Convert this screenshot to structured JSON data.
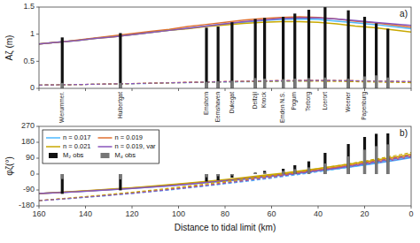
{
  "chart_data": [
    {
      "type": "line",
      "title": "a)",
      "ylabel": "Aζ (m)",
      "xlim": [
        160,
        0
      ],
      "ylim": [
        0,
        1.5
      ],
      "xticks": [
        0,
        20,
        40,
        60,
        80,
        100,
        120,
        140,
        160
      ],
      "yticks": [
        0,
        0.5,
        1,
        1.5
      ],
      "tick_labels": "y",
      "grid": false,
      "x": [
        160,
        152,
        144,
        136,
        128,
        120,
        112,
        104,
        96,
        88,
        80,
        72,
        64,
        56,
        48,
        40,
        32,
        24,
        16,
        8,
        0
      ],
      "series": [
        {
          "color": "#4db8ff",
          "line_style": "solid",
          "values": [
            0.82,
            0.85,
            0.88,
            0.92,
            0.96,
            0.99,
            1.03,
            1.07,
            1.11,
            1.15,
            1.19,
            1.22,
            1.25,
            1.27,
            1.28,
            1.27,
            1.24,
            1.21,
            1.18,
            1.14,
            1.1
          ]
        },
        {
          "color": "#e07030",
          "line_style": "solid",
          "values": [
            0.82,
            0.85,
            0.89,
            0.93,
            0.97,
            1.01,
            1.05,
            1.09,
            1.14,
            1.18,
            1.22,
            1.26,
            1.29,
            1.31,
            1.32,
            1.31,
            1.28,
            1.24,
            1.21,
            1.17,
            1.13
          ]
        },
        {
          "color": "#c8a800",
          "line_style": "solid",
          "values": [
            0.82,
            0.85,
            0.88,
            0.92,
            0.95,
            0.99,
            1.03,
            1.07,
            1.1,
            1.14,
            1.17,
            1.2,
            1.22,
            1.23,
            1.23,
            1.22,
            1.19,
            1.15,
            1.12,
            1.08,
            1.04
          ]
        },
        {
          "color": "#8855bb",
          "line_style": "solid",
          "values": [
            0.82,
            0.85,
            0.88,
            0.92,
            0.95,
            0.99,
            1.03,
            1.07,
            1.11,
            1.15,
            1.19,
            1.23,
            1.26,
            1.29,
            1.3,
            1.3,
            1.28,
            1.25,
            1.22,
            1.19,
            1.16
          ]
        },
        {
          "color": "#4db8ff",
          "line_style": "dashed",
          "values": [
            0.06,
            0.065,
            0.07,
            0.075,
            0.08,
            0.085,
            0.09,
            0.1,
            0.105,
            0.11,
            0.115,
            0.12,
            0.125,
            0.13,
            0.135,
            0.14,
            0.14,
            0.135,
            0.13,
            0.125,
            0.12
          ]
        },
        {
          "color": "#e07030",
          "line_style": "dashed",
          "values": [
            0.06,
            0.065,
            0.07,
            0.077,
            0.083,
            0.09,
            0.097,
            0.105,
            0.113,
            0.12,
            0.127,
            0.134,
            0.14,
            0.145,
            0.148,
            0.149,
            0.147,
            0.143,
            0.138,
            0.132,
            0.126
          ]
        },
        {
          "color": "#c8a800",
          "line_style": "dashed",
          "values": [
            0.06,
            0.065,
            0.07,
            0.075,
            0.081,
            0.087,
            0.093,
            0.1,
            0.107,
            0.113,
            0.119,
            0.124,
            0.128,
            0.131,
            0.132,
            0.131,
            0.128,
            0.123,
            0.117,
            0.111,
            0.105
          ]
        },
        {
          "color": "#8855bb",
          "line_style": "dashed",
          "values": [
            0.06,
            0.065,
            0.07,
            0.076,
            0.082,
            0.088,
            0.095,
            0.102,
            0.109,
            0.116,
            0.123,
            0.13,
            0.136,
            0.141,
            0.144,
            0.145,
            0.143,
            0.139,
            0.134,
            0.128,
            0.122
          ]
        },
        {
          "type": "bar",
          "color": "#111111",
          "x": [
            150,
            125,
            88,
            83,
            77,
            67,
            63,
            55,
            50,
            44,
            37,
            27,
            20,
            15,
            10
          ],
          "values": [
            0.94,
            1.02,
            1.12,
            1.14,
            1.22,
            1.28,
            1.3,
            1.32,
            1.38,
            1.45,
            1.5,
            1.44,
            1.32,
            1.2,
            1.1
          ]
        },
        {
          "type": "bar",
          "color": "#777777",
          "x": [
            150,
            125,
            88,
            83,
            77,
            67,
            63,
            55,
            50,
            44,
            37,
            27,
            20,
            15,
            10
          ],
          "values": [
            0.1,
            0.1,
            0.12,
            0.13,
            0.14,
            0.19,
            0.18,
            0.17,
            0.18,
            0.19,
            0.2,
            0.18,
            0.22,
            0.24,
            0.2
          ]
        }
      ],
      "annotations": [
        {
          "text": "Wierummer.",
          "x": 150
        },
        {
          "text": "Huibertgat",
          "x": 125
        },
        {
          "text": "Emshorn",
          "x": 88
        },
        {
          "text": "Eemshaven",
          "x": 83
        },
        {
          "text": "Dukegat",
          "x": 77
        },
        {
          "text": "Delfzijl",
          "x": 67
        },
        {
          "text": "Knock",
          "x": 63
        },
        {
          "text": "Emden N.S.",
          "x": 55
        },
        {
          "text": "Pogum",
          "x": 50
        },
        {
          "text": "Terborg",
          "x": 44
        },
        {
          "text": "Loerort",
          "x": 37
        },
        {
          "text": "Weener",
          "x": 27
        },
        {
          "text": "Papenburg",
          "x": 20
        }
      ]
    },
    {
      "type": "line",
      "title": "b)",
      "ylabel": "φζ(°)",
      "xlabel": "Distance to tidal limit (km)",
      "xlim": [
        160,
        0
      ],
      "ylim": [
        -180,
        270
      ],
      "xticks": [
        0,
        20,
        40,
        60,
        80,
        100,
        120,
        140,
        160
      ],
      "yticks": [
        -180,
        -90,
        0,
        90,
        180,
        270
      ],
      "grid": false,
      "legend": "upper left",
      "x": [
        160,
        152,
        144,
        136,
        128,
        120,
        112,
        104,
        96,
        88,
        80,
        72,
        64,
        56,
        48,
        40,
        32,
        24,
        16,
        8,
        0
      ],
      "series": [
        {
          "name": "n = 0.017",
          "color": "#4db8ff",
          "line_style": "solid",
          "values": [
            -110,
            -105,
            -100,
            -94,
            -88,
            -81,
            -74,
            -66,
            -58,
            -49,
            -40,
            -30,
            -19,
            -8,
            4,
            17,
            30,
            44,
            59,
            75,
            92
          ]
        },
        {
          "name": "n = 0.019",
          "color": "#e07030",
          "line_style": "solid",
          "values": [
            -110,
            -105,
            -99,
            -93,
            -86,
            -79,
            -71,
            -63,
            -54,
            -45,
            -35,
            -24,
            -13,
            -1,
            11,
            25,
            39,
            53,
            69,
            85,
            102
          ]
        },
        {
          "name": "n = 0.021",
          "color": "#c8a800",
          "line_style": "solid",
          "values": [
            -110,
            -104,
            -98,
            -91,
            -84,
            -77,
            -69,
            -60,
            -51,
            -41,
            -31,
            -20,
            -8,
            4,
            17,
            31,
            46,
            61,
            77,
            94,
            112
          ]
        },
        {
          "name": "n = 0.019, var",
          "color": "#8855bb",
          "line_style": "solid",
          "values": [
            -110,
            -105,
            -100,
            -94,
            -88,
            -81,
            -74,
            -66,
            -57,
            -48,
            -38,
            -27,
            -16,
            -5,
            7,
            20,
            33,
            48,
            63,
            79,
            96
          ]
        },
        {
          "color": "#4db8ff",
          "line_style": "dashed",
          "values": [
            -150,
            -143,
            -136,
            -128,
            -119,
            -110,
            -100,
            -90,
            -79,
            -67,
            -55,
            -43,
            -30,
            -16,
            -2,
            13,
            28,
            44,
            61,
            79,
            98
          ]
        },
        {
          "color": "#e07030",
          "line_style": "dashed",
          "values": [
            -150,
            -142,
            -134,
            -125,
            -116,
            -106,
            -96,
            -85,
            -73,
            -61,
            -48,
            -35,
            -21,
            -7,
            7,
            22,
            38,
            55,
            73,
            91,
            110
          ]
        },
        {
          "color": "#c8a800",
          "line_style": "dashed",
          "values": [
            -150,
            -141,
            -132,
            -123,
            -113,
            -103,
            -92,
            -80,
            -68,
            -55,
            -42,
            -28,
            -14,
            0,
            15,
            31,
            47,
            64,
            83,
            102,
            122
          ]
        },
        {
          "color": "#8855bb",
          "line_style": "dashed",
          "values": [
            -150,
            -143,
            -135,
            -127,
            -118,
            -109,
            -99,
            -88,
            -77,
            -65,
            -52,
            -39,
            -26,
            -12,
            3,
            18,
            34,
            51,
            69,
            87,
            106
          ]
        },
        {
          "type": "bar",
          "name": "M₂ obs",
          "color": "#111111",
          "x": [
            150,
            125,
            88,
            83,
            77,
            67,
            63,
            55,
            50,
            44,
            37,
            27,
            20,
            15,
            10
          ],
          "values": [
            -112,
            -92,
            -42,
            -35,
            -20,
            8,
            18,
            30,
            50,
            72,
            120,
            170,
            210,
            228,
            230
          ]
        },
        {
          "type": "bar",
          "name": "M₄ obs",
          "color": "#777777",
          "x": [
            150,
            125,
            88,
            83,
            77,
            67,
            63,
            55,
            50,
            44,
            37,
            27,
            20,
            15,
            10
          ],
          "values": [
            -28,
            -30,
            -18,
            -12,
            -8,
            5,
            10,
            18,
            28,
            38,
            60,
            100,
            138,
            158,
            168
          ]
        }
      ]
    }
  ]
}
